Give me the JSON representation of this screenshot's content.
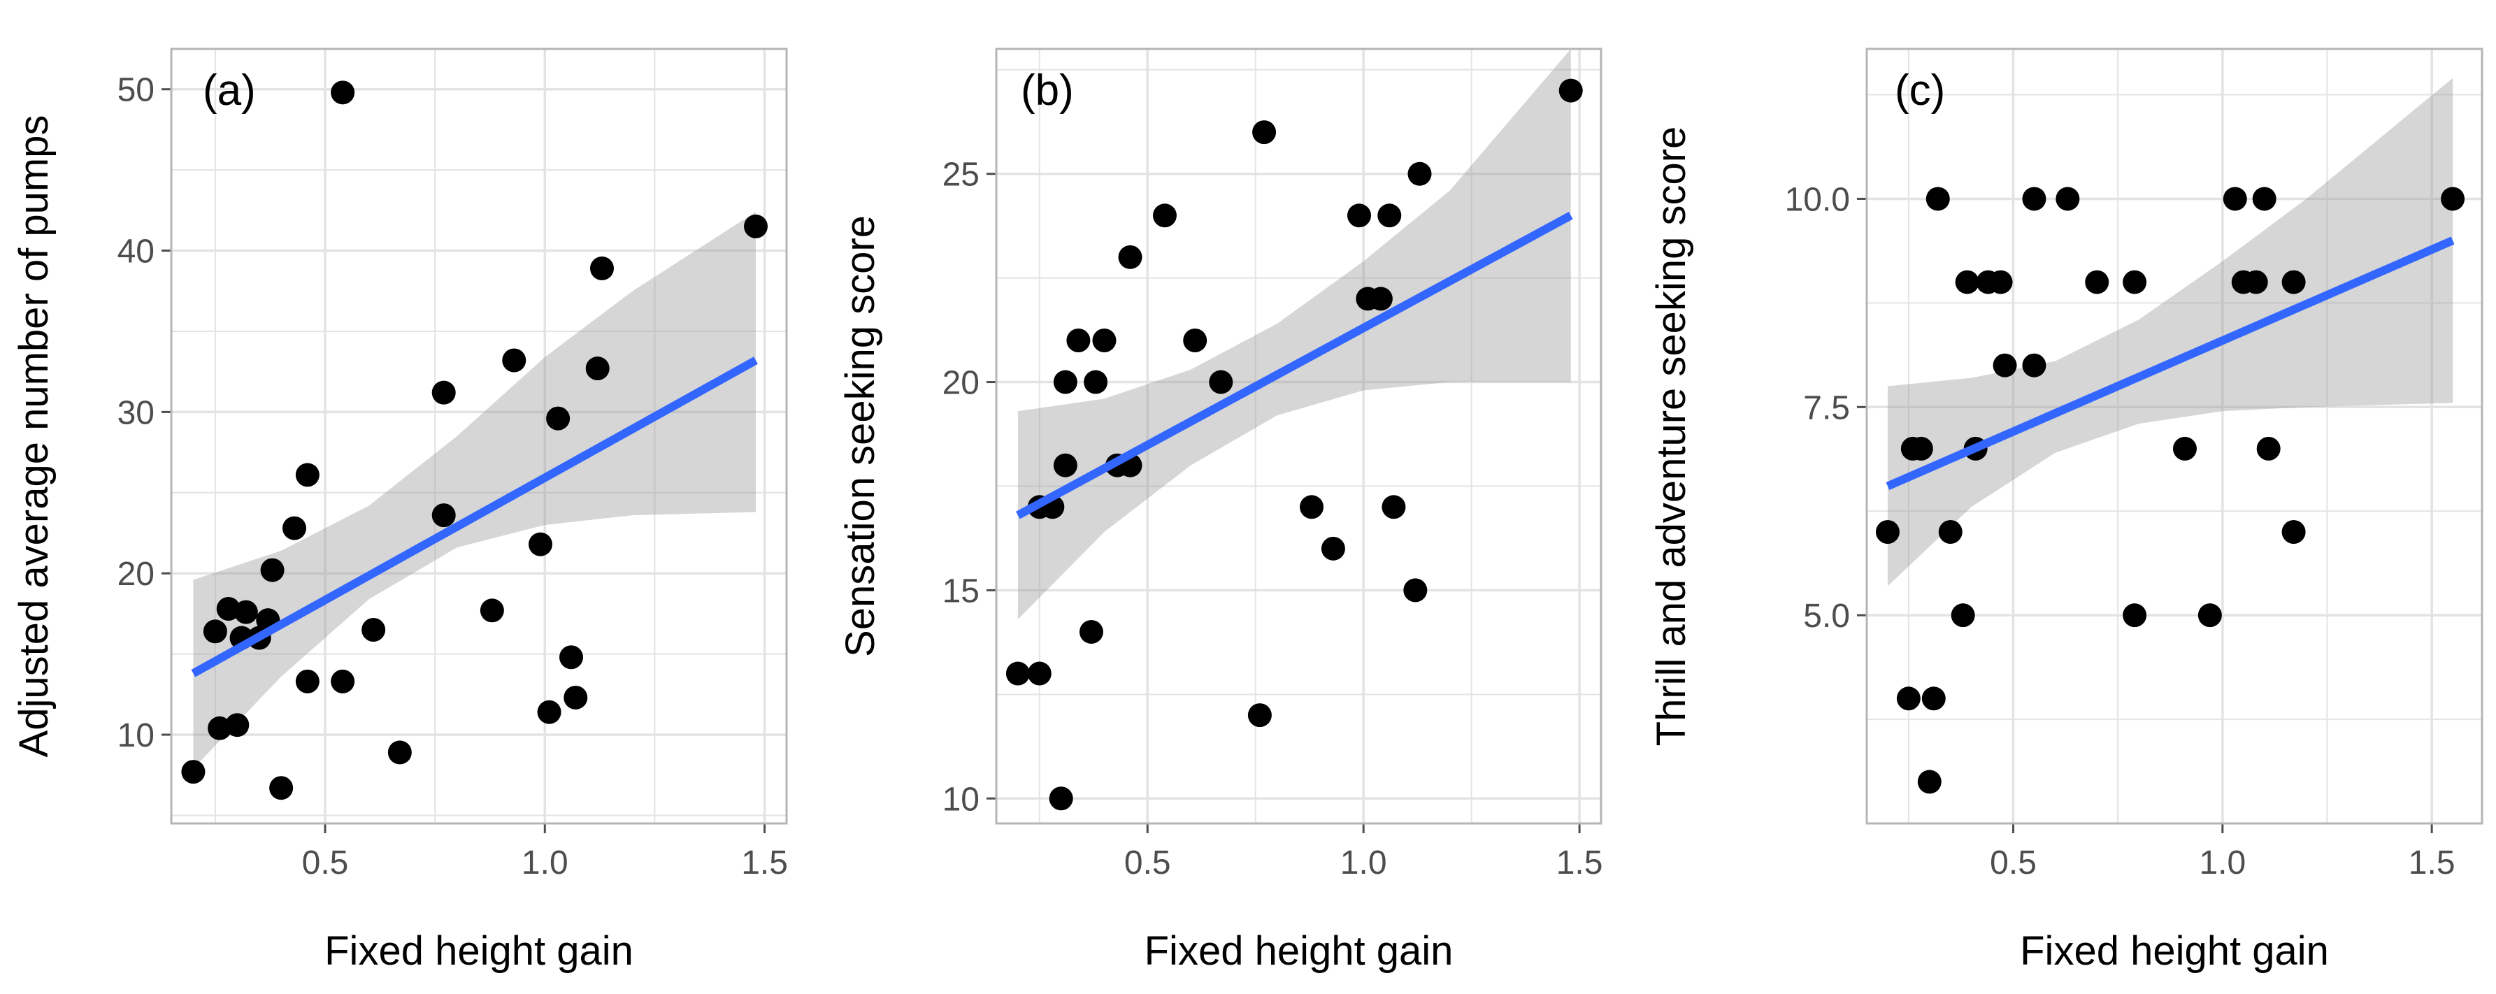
{
  "figure": {
    "colors": {
      "points": "#000000",
      "fit_line": "#3366ff",
      "confidence_band": "#999999",
      "gridline": "#e3e3e3",
      "panel_border": "#b5b5b5",
      "background": "#ffffff"
    }
  },
  "chart_data": [
    {
      "panel": "(a)",
      "type": "scatter",
      "xlabel": "Fixed height gain",
      "ylabel": "Adjusted average number of pumps",
      "xlim": [
        0.15,
        1.55
      ],
      "ylim": [
        4.5,
        52.5
      ],
      "x_ticks": [
        0.5,
        1.0,
        1.5
      ],
      "x_tick_labels": [
        "0.5",
        "1.0",
        "1.5"
      ],
      "y_ticks": [
        10,
        20,
        30,
        40,
        50
      ],
      "y_tick_labels": [
        "10",
        "20",
        "30",
        "40",
        "50"
      ],
      "grid": true,
      "points": [
        [
          0.2,
          7.7
        ],
        [
          0.25,
          16.4
        ],
        [
          0.26,
          10.4
        ],
        [
          0.28,
          17.8
        ],
        [
          0.3,
          10.6
        ],
        [
          0.31,
          16.0
        ],
        [
          0.32,
          17.6
        ],
        [
          0.35,
          16.0
        ],
        [
          0.37,
          17.1
        ],
        [
          0.38,
          20.2
        ],
        [
          0.4,
          6.7
        ],
        [
          0.43,
          22.8
        ],
        [
          0.46,
          13.3
        ],
        [
          0.46,
          26.1
        ],
        [
          0.54,
          13.3
        ],
        [
          0.54,
          49.8
        ],
        [
          0.61,
          16.5
        ],
        [
          0.67,
          8.9
        ],
        [
          0.77,
          31.2
        ],
        [
          0.77,
          23.6
        ],
        [
          0.88,
          17.7
        ],
        [
          0.93,
          33.2
        ],
        [
          0.99,
          21.8
        ],
        [
          1.01,
          11.4
        ],
        [
          1.03,
          29.6
        ],
        [
          1.06,
          14.8
        ],
        [
          1.07,
          12.3
        ],
        [
          1.12,
          32.7
        ],
        [
          1.13,
          38.9
        ],
        [
          1.48,
          41.5
        ]
      ],
      "fit": {
        "x": [
          0.2,
          1.48
        ],
        "y": [
          13.8,
          33.2
        ]
      },
      "band": {
        "x": [
          0.2,
          0.4,
          0.6,
          0.8,
          1.0,
          1.2,
          1.48
        ],
        "lower": [
          7.9,
          13.6,
          18.4,
          21.6,
          23.0,
          23.6,
          23.8
        ],
        "upper": [
          19.6,
          21.4,
          24.2,
          28.5,
          33.4,
          37.5,
          42.4
        ]
      }
    },
    {
      "panel": "(b)",
      "type": "scatter",
      "xlabel": "Fixed height gain",
      "ylabel": "Sensation seeking score",
      "xlim": [
        0.15,
        1.55
      ],
      "ylim": [
        9.4,
        28.0
      ],
      "x_ticks": [
        0.5,
        1.0,
        1.5
      ],
      "x_tick_labels": [
        "0.5",
        "1.0",
        "1.5"
      ],
      "y_ticks": [
        10,
        15,
        20,
        25
      ],
      "y_tick_labels": [
        "10",
        "15",
        "20",
        "25"
      ],
      "grid": true,
      "points": [
        [
          0.2,
          13
        ],
        [
          0.25,
          13
        ],
        [
          0.25,
          17
        ],
        [
          0.28,
          17
        ],
        [
          0.3,
          10
        ],
        [
          0.31,
          20
        ],
        [
          0.31,
          18
        ],
        [
          0.34,
          21
        ],
        [
          0.37,
          14
        ],
        [
          0.38,
          20
        ],
        [
          0.4,
          21
        ],
        [
          0.43,
          18
        ],
        [
          0.46,
          18
        ],
        [
          0.46,
          23
        ],
        [
          0.54,
          24
        ],
        [
          0.61,
          21
        ],
        [
          0.67,
          20
        ],
        [
          0.76,
          12
        ],
        [
          0.77,
          26
        ],
        [
          0.88,
          17
        ],
        [
          0.93,
          16
        ],
        [
          0.99,
          24
        ],
        [
          1.01,
          22
        ],
        [
          1.04,
          22
        ],
        [
          1.06,
          24
        ],
        [
          1.07,
          17
        ],
        [
          1.12,
          15
        ],
        [
          1.13,
          25
        ],
        [
          1.48,
          27
        ]
      ],
      "fit": {
        "x": [
          0.2,
          1.48
        ],
        "y": [
          16.8,
          24.0
        ]
      },
      "band": {
        "x": [
          0.2,
          0.4,
          0.6,
          0.8,
          1.0,
          1.2,
          1.48
        ],
        "lower": [
          14.3,
          16.4,
          18.0,
          19.2,
          19.8,
          20.0,
          20.0
        ],
        "upper": [
          19.3,
          19.6,
          20.3,
          21.4,
          22.9,
          24.6,
          28.0
        ]
      }
    },
    {
      "panel": "(c)",
      "type": "scatter",
      "xlabel": "Fixed height gain",
      "ylabel": "Thrill and adventure seeking score",
      "xlim": [
        0.15,
        1.62
      ],
      "ylim": [
        2.5,
        11.8
      ],
      "x_ticks": [
        0.5,
        1.0,
        1.5
      ],
      "x_tick_labels": [
        "0.5",
        "1.0",
        "1.5"
      ],
      "y_ticks": [
        5.0,
        7.5,
        10.0
      ],
      "y_tick_labels": [
        "5.0",
        "7.5",
        "10.0"
      ],
      "grid": true,
      "points": [
        [
          0.2,
          6
        ],
        [
          0.25,
          4
        ],
        [
          0.26,
          7
        ],
        [
          0.28,
          7
        ],
        [
          0.3,
          3
        ],
        [
          0.31,
          4
        ],
        [
          0.32,
          10
        ],
        [
          0.35,
          6
        ],
        [
          0.38,
          5
        ],
        [
          0.39,
          9
        ],
        [
          0.41,
          7
        ],
        [
          0.44,
          9
        ],
        [
          0.47,
          9
        ],
        [
          0.48,
          8
        ],
        [
          0.55,
          8
        ],
        [
          0.55,
          10
        ],
        [
          0.63,
          10
        ],
        [
          0.7,
          9
        ],
        [
          0.79,
          9
        ],
        [
          0.79,
          5
        ],
        [
          0.91,
          7
        ],
        [
          0.97,
          5
        ],
        [
          1.03,
          10
        ],
        [
          1.05,
          9
        ],
        [
          1.08,
          9
        ],
        [
          1.1,
          10
        ],
        [
          1.11,
          7
        ],
        [
          1.17,
          9
        ],
        [
          1.17,
          6
        ],
        [
          1.55,
          10
        ]
      ],
      "fit": {
        "x": [
          0.2,
          1.55
        ],
        "y": [
          6.55,
          9.5
        ]
      },
      "band": {
        "x": [
          0.2,
          0.4,
          0.6,
          0.8,
          1.0,
          1.2,
          1.55
        ],
        "lower": [
          5.35,
          6.3,
          6.95,
          7.3,
          7.45,
          7.5,
          7.55
        ],
        "upper": [
          7.75,
          7.85,
          8.05,
          8.55,
          9.25,
          10.0,
          11.45
        ]
      }
    }
  ]
}
